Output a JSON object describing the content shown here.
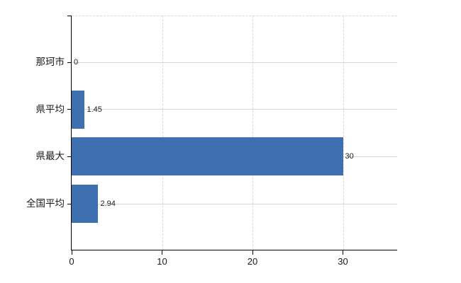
{
  "chart_data": {
    "type": "bar",
    "orientation": "horizontal",
    "title": "",
    "xlabel": "",
    "ylabel": "",
    "categories": [
      "那珂市",
      "県平均",
      "県最大",
      "全国平均"
    ],
    "values": [
      0,
      1.45,
      30,
      2.94
    ],
    "value_labels": [
      "0",
      "1.45",
      "30",
      "2.94"
    ],
    "xlim": [
      0,
      36
    ],
    "x_ticks": [
      0,
      10,
      20,
      30
    ],
    "x_tick_labels": [
      "0",
      "10",
      "20",
      "30"
    ],
    "grid": true,
    "legend": false,
    "colors": {
      "bar": "#3e6fb0",
      "gridline_horizontal": "#d3d9d0",
      "gridline_vertical": "#d9d9d9",
      "top_border": "#d9d9d9",
      "axis": "#000000",
      "text": "#1a1a1a"
    }
  }
}
